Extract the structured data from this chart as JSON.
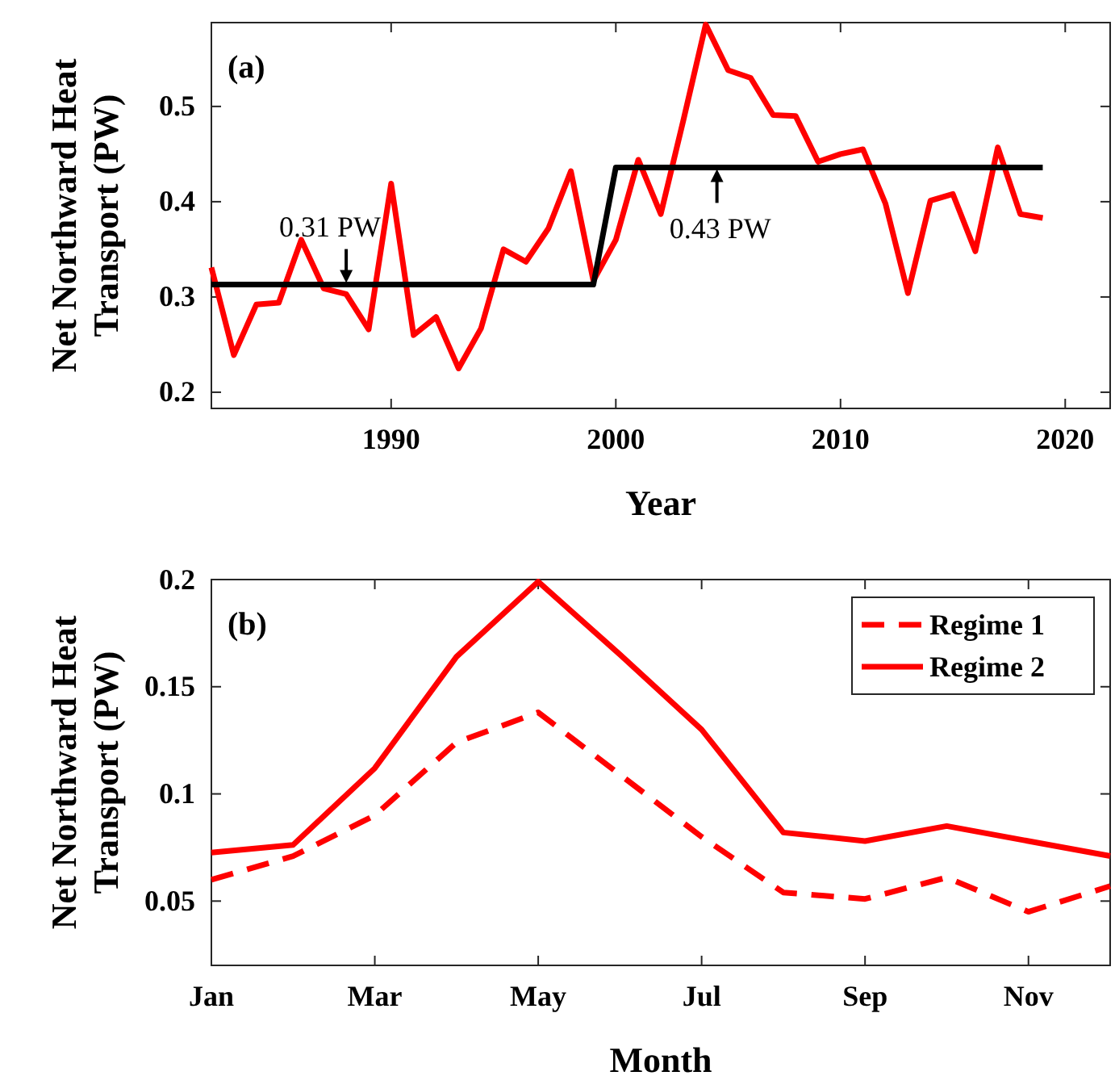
{
  "chart_data": [
    {
      "type": "line",
      "xlabel": "Year",
      "ylabel": "Net Northward Heat Transport (PW)",
      "xlim": [
        1982,
        2022
      ],
      "ylim": [
        0.183,
        0.588
      ],
      "xticks": [
        1990,
        2000,
        2010,
        2020
      ],
      "yticks": [
        0.2,
        0.3,
        0.4,
        0.5
      ],
      "grid": false,
      "legend": false,
      "marker": "none",
      "annotations": [
        "(a)",
        {
          "text": "0.31 PW",
          "x": 1988,
          "y": 0.313
        },
        {
          "text": "0.43 PW",
          "x": 2004.5,
          "y": 0.436
        }
      ],
      "series": [
        {
          "color": "#ff0000",
          "line_style": "solid",
          "x": [
            1982,
            1983,
            1984,
            1985,
            1986,
            1987,
            1988,
            1989,
            1990,
            1991,
            1992,
            1993,
            1994,
            1995,
            1996,
            1997,
            1998,
            1999,
            2000,
            2001,
            2002,
            2003,
            2004,
            2005,
            2006,
            2007,
            2008,
            2009,
            2010,
            2011,
            2012,
            2013,
            2014,
            2015,
            2016,
            2017,
            2018,
            2019
          ],
          "values": [
            0.331,
            0.239,
            0.292,
            0.294,
            0.36,
            0.309,
            0.303,
            0.266,
            0.419,
            0.26,
            0.279,
            0.225,
            0.267,
            0.35,
            0.337,
            0.372,
            0.432,
            0.317,
            0.36,
            0.444,
            0.387,
            0.485,
            0.586,
            0.538,
            0.53,
            0.491,
            0.49,
            0.442,
            0.45,
            0.455,
            0.398,
            0.304,
            0.401,
            0.408,
            0.348,
            0.457,
            0.387,
            0.383
          ]
        },
        {
          "color": "#000000",
          "line_style": "solid",
          "x": [
            1982,
            1999,
            2000,
            2019
          ],
          "values": [
            0.313,
            0.313,
            0.436,
            0.436
          ]
        }
      ]
    },
    {
      "type": "line",
      "xlabel": "Month",
      "ylabel": "Net Northward Heat Transport (PW)",
      "categories": [
        "Jan",
        null,
        "Mar",
        null,
        "May",
        null,
        "Jul",
        null,
        "Sep",
        null,
        "Nov",
        null
      ],
      "ylim": [
        0.02,
        0.2
      ],
      "yticks": [
        0.05,
        0.1,
        0.15,
        0.2
      ],
      "grid": false,
      "legend": "top right",
      "marker": "none",
      "annotations": [
        "(b)"
      ],
      "series": [
        {
          "name": "Regime 1",
          "color": "#ff0000",
          "line_style": "dashed",
          "values": [
            0.06,
            0.071,
            0.09,
            0.124,
            0.138,
            0.109,
            0.08,
            0.054,
            0.051,
            0.061,
            0.045,
            0.057
          ]
        },
        {
          "name": "Regime 2",
          "color": "#ff0000",
          "line_style": "solid",
          "values": [
            0.0726,
            0.0762,
            0.112,
            0.164,
            0.199,
            0.165,
            0.13,
            0.082,
            0.078,
            0.085,
            0.078,
            0.071
          ]
        }
      ]
    }
  ]
}
